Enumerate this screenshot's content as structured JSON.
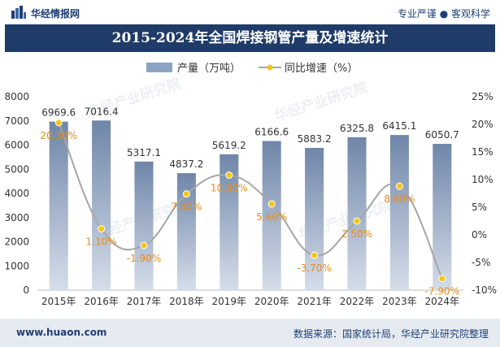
{
  "header": {
    "brand": "华经情报网",
    "slogan_left": "专业严谨",
    "slogan_right": "客观科学"
  },
  "watermark": "华经产业研究院",
  "footer": {
    "url": "www.huaon.com",
    "source": "数据来源：国家统计局，华经产业研究院整理"
  },
  "colors": {
    "title_bg": "#1f3b67",
    "bar": "#8ea4c4",
    "line": "#a6a6a6",
    "marker": "#f5c518",
    "label_orange": "#e88c1a"
  },
  "chart_data": {
    "type": "bar",
    "title": "2015-2024年全国焊接钢管产量及增速统计",
    "categories": [
      "2015年",
      "2016年",
      "2017年",
      "2018年",
      "2019年",
      "2020年",
      "2021年",
      "2022年",
      "2023年",
      "2024年"
    ],
    "series": [
      {
        "name": "产量（万吨）",
        "type": "bar",
        "axis": "left",
        "values": [
          6969.6,
          7016.4,
          5317.1,
          4837.2,
          5619.2,
          6166.6,
          5883.2,
          6325.8,
          6415.1,
          6050.7
        ],
        "labels": [
          "6969.6",
          "7016.4",
          "5317.1",
          "4837.2",
          "5619.2",
          "6166.6",
          "5883.2",
          "6325.8",
          "6415.1",
          "6050.7"
        ]
      },
      {
        "name": "同比增速（%）",
        "type": "line",
        "axis": "right",
        "values": [
          20.3,
          1.1,
          -1.9,
          7.4,
          10.8,
          5.6,
          -3.7,
          2.5,
          8.8,
          -7.9
        ],
        "labels": [
          "20.30%",
          "1.10%",
          "-1.90%",
          "7.40%",
          "10.80%",
          "5.60%",
          "-3.70%",
          "2.50%",
          "8.80%",
          "-7.90%"
        ]
      }
    ],
    "ylim_left": [
      0,
      8000
    ],
    "yticks_left": [
      "0",
      "1000",
      "2000",
      "3000",
      "4000",
      "5000",
      "6000",
      "7000",
      "8000"
    ],
    "ylim_right": [
      -10,
      25
    ],
    "yticks_right": [
      "-10%",
      "-5%",
      "0%",
      "5%",
      "10%",
      "15%",
      "20%",
      "25%"
    ],
    "legend_position": "top-center",
    "grid": false
  }
}
